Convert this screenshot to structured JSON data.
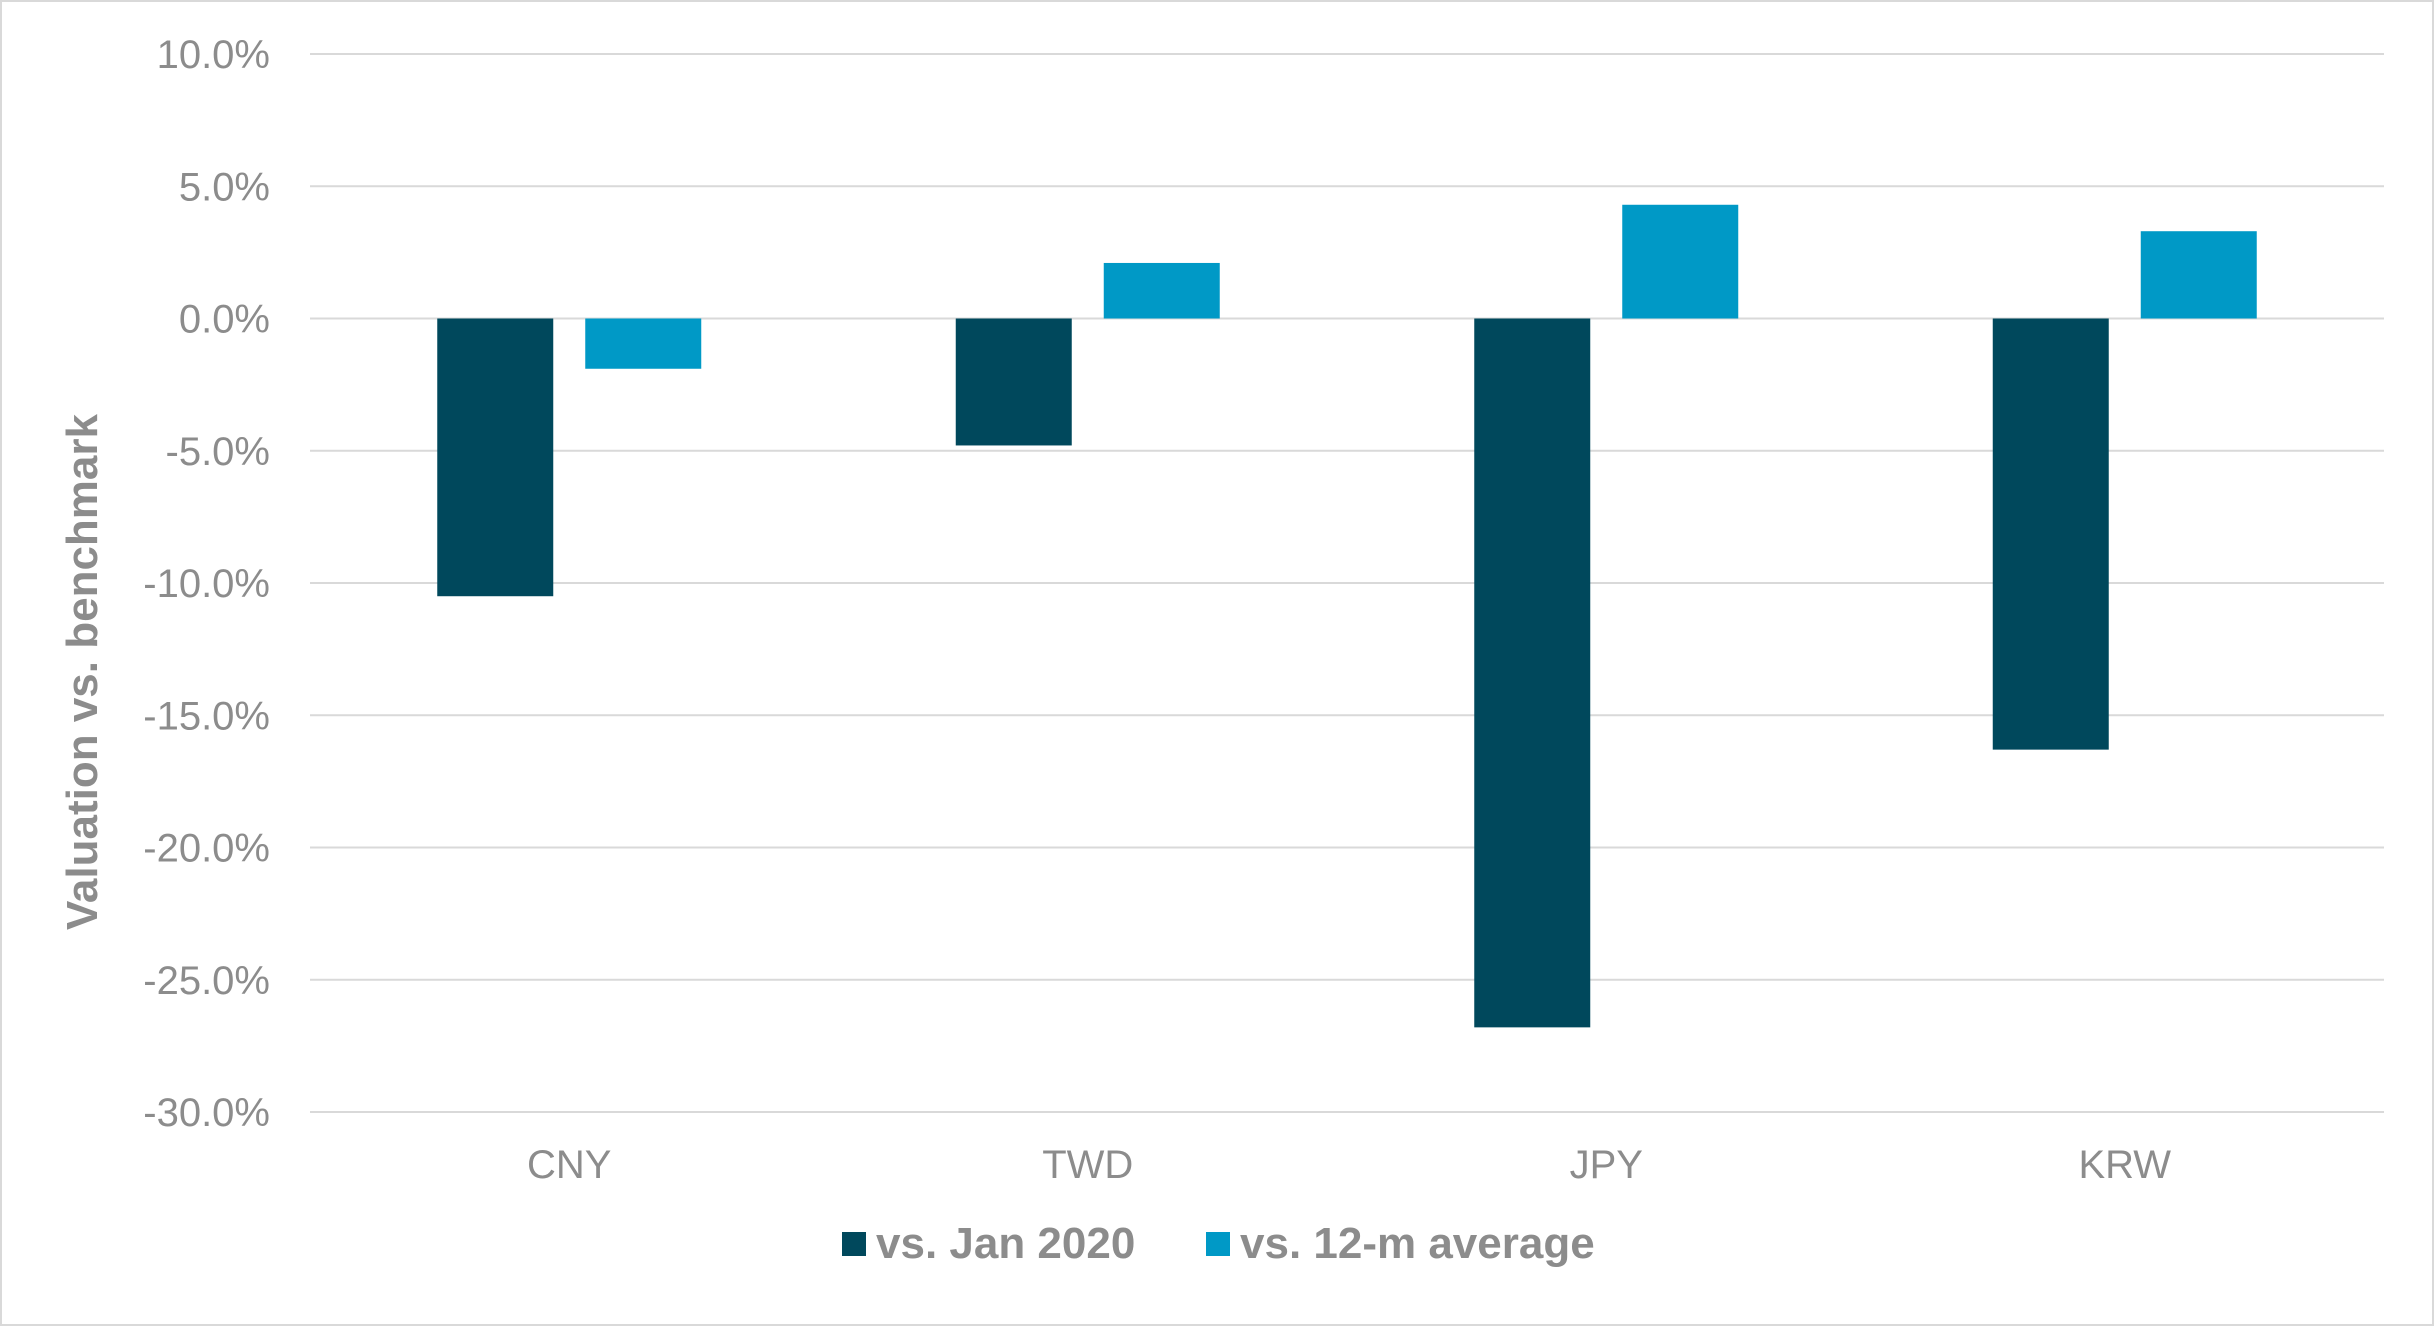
{
  "chart_data": {
    "type": "bar",
    "title": "",
    "xlabel": "",
    "ylabel": "Valuation vs. benchmark",
    "categories": [
      "CNY",
      "TWD",
      "JPY",
      "KRW"
    ],
    "series": [
      {
        "name": "vs. Jan 2020",
        "values": [
          -10.5,
          -4.8,
          -26.8,
          -16.3
        ],
        "color": "#00485c"
      },
      {
        "name": "vs. 12-m average",
        "values": [
          -1.9,
          2.1,
          4.3,
          3.3
        ],
        "color": "#0099c6"
      }
    ],
    "ylim": [
      -30,
      10
    ],
    "yticks": [
      10,
      5,
      0,
      -5,
      -10,
      -15,
      -20,
      -25,
      -30
    ],
    "ytick_labels": [
      "10.0%",
      "5.0%",
      "0.0%",
      "-5.0%",
      "-10.0%",
      "-15.0%",
      "-20.0%",
      "-25.0%",
      "-30.0%"
    ],
    "grid": true,
    "legend_position": "bottom"
  }
}
